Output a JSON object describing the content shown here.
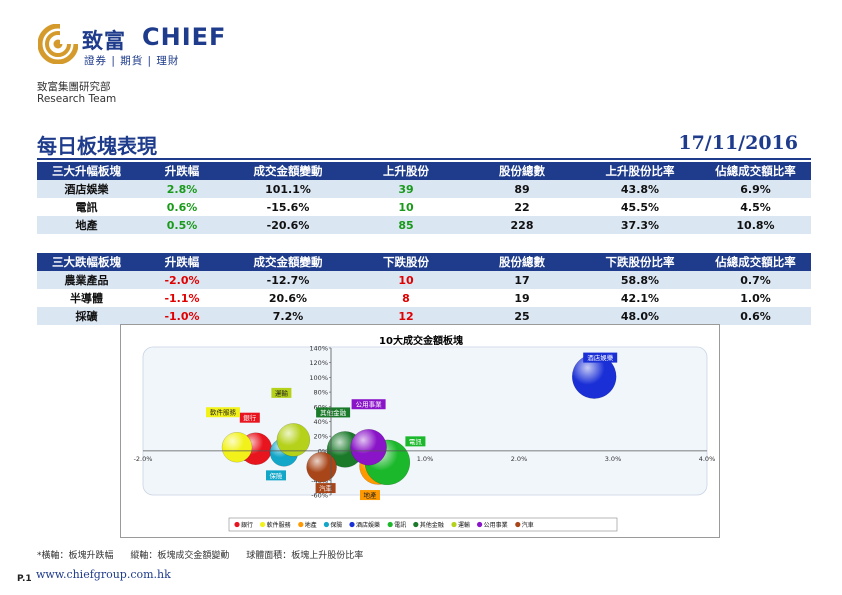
{
  "brand": {
    "name_cn": "致富",
    "name_en": "CHIEF",
    "tagline": "證券 | 期貨 | 理財"
  },
  "department": {
    "cn": "致富集團研究部",
    "en": "Research Team"
  },
  "report": {
    "title": "每日板塊表現",
    "date": "17/11/2016"
  },
  "top_sectors": {
    "headers": [
      "三大升幅板塊",
      "升跌幅",
      "成交金額變動",
      "上升股份",
      "股份總數",
      "上升股份比率",
      "佔總成交額比率"
    ],
    "rows": [
      [
        "酒店娛樂",
        "2.8%",
        "101.1%",
        "39",
        "89",
        "43.8%",
        "6.9%"
      ],
      [
        "電訊",
        "0.6%",
        "-15.6%",
        "10",
        "22",
        "45.5%",
        "4.5%"
      ],
      [
        "地產",
        "0.5%",
        "-20.6%",
        "85",
        "228",
        "37.3%",
        "10.8%"
      ]
    ]
  },
  "bottom_sectors": {
    "headers": [
      "三大跌幅板塊",
      "升跌幅",
      "成交金額變動",
      "下跌股份",
      "股份總數",
      "下跌股份比率",
      "佔總成交額比率"
    ],
    "rows": [
      [
        "農業產品",
        "-2.0%",
        "-12.7%",
        "10",
        "17",
        "58.8%",
        "0.7%"
      ],
      [
        "半導體",
        "-1.1%",
        "20.6%",
        "8",
        "19",
        "42.1%",
        "1.0%"
      ],
      [
        "採礦",
        "-1.0%",
        "7.2%",
        "12",
        "25",
        "48.0%",
        "0.6%"
      ]
    ]
  },
  "chart_data": {
    "type": "scatter",
    "title": "10大成交金額板塊",
    "xlabel": "板塊升跌幅",
    "ylabel": "板塊成交金額變動",
    "xlim": [
      -2.0,
      4.0
    ],
    "ylim": [
      -60,
      140
    ],
    "x_ticks": [
      "-2.0%",
      "-1.0%",
      "0.0%",
      "1.0%",
      "2.0%",
      "3.0%",
      "4.0%"
    ],
    "y_ticks": [
      "-60%",
      "-40%",
      "-20%",
      "0%",
      "20%",
      "40%",
      "60%",
      "80%",
      "100%",
      "120%",
      "140%"
    ],
    "series": [
      {
        "name": "銀行",
        "x": -0.8,
        "y": 3,
        "size": 32,
        "color": "#e8141e"
      },
      {
        "name": "軟件服務",
        "x": -1.0,
        "y": 5,
        "size": 30,
        "color": "#f2f21a"
      },
      {
        "name": "地產",
        "x": 0.5,
        "y": -20.6,
        "size": 37,
        "color": "#ff9900"
      },
      {
        "name": "保險",
        "x": -0.5,
        "y": -2,
        "size": 28,
        "color": "#12a6c8"
      },
      {
        "name": "酒店娛樂",
        "x": 2.8,
        "y": 101.1,
        "size": 44,
        "color": "#1a2fd6"
      },
      {
        "name": "電訊",
        "x": 0.6,
        "y": -15.6,
        "size": 45,
        "color": "#1ab82a"
      },
      {
        "name": "其他金融",
        "x": 0.15,
        "y": 2,
        "size": 36,
        "color": "#1a7a2a"
      },
      {
        "name": "運輸",
        "x": -0.4,
        "y": 15,
        "size": 33,
        "color": "#b5d11a"
      },
      {
        "name": "公用事業",
        "x": 0.4,
        "y": 5,
        "size": 36,
        "color": "#8a14c8"
      },
      {
        "name": "汽車",
        "x": -0.1,
        "y": -22,
        "size": 30,
        "color": "#a8461a"
      }
    ],
    "legend": [
      "銀行",
      "軟件服務",
      "地產",
      "保險",
      "酒店娛樂",
      "電訊",
      "其他金融",
      "運輸",
      "公用事業",
      "汽車"
    ]
  },
  "footnote": {
    "xaxis": "*橫軸：板塊升跌幅",
    "yaxis": "縱軸：板塊成交金額變動",
    "area": "球體面積：板塊上升股份比率"
  },
  "footer": {
    "page": "P.1",
    "website": "www.chiefgroup.com.hk"
  }
}
